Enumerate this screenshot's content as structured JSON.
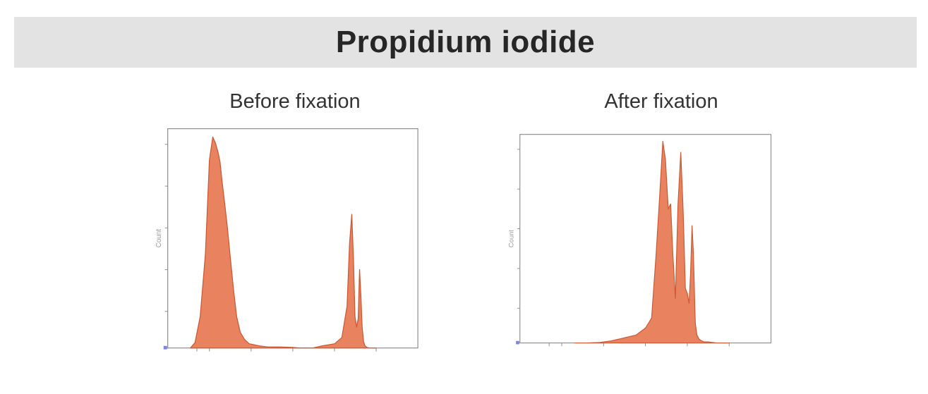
{
  "header": {
    "title": "Propidium iodide"
  },
  "colors": {
    "fill": "#e8825f",
    "stroke": "#cc5a36",
    "axis": "#8c8c8c",
    "banner": "#e3e3e3"
  },
  "chart_data": [
    {
      "type": "area",
      "title": "Before fixation",
      "ylabel": "Count",
      "x_scale": "log",
      "xlim": [
        0.1,
        100000
      ],
      "ylim": [
        0,
        210
      ],
      "x_ticks": [
        0.5,
        1,
        10,
        100,
        1000,
        10000
      ],
      "y_ticks": [
        0,
        35,
        75,
        115,
        155,
        195
      ],
      "series": [
        {
          "x": [
            0.35,
            0.45,
            0.6,
            0.8,
            1.0,
            1.2,
            1.4,
            1.6,
            1.8,
            2.0,
            2.3,
            2.7,
            3.2,
            3.8,
            4.5,
            5.5,
            7,
            9,
            12,
            16,
            25,
            50,
            100,
            150,
            200,
            300,
            500,
            1000,
            1500,
            2000,
            2300,
            2600,
            2850,
            3100,
            3400,
            3700,
            4000,
            4300,
            4600,
            5000,
            5400,
            6000,
            7000,
            10000
          ],
          "y": [
            0,
            5,
            30,
            90,
            180,
            202,
            196,
            188,
            178,
            160,
            140,
            115,
            85,
            55,
            30,
            15,
            8,
            4,
            3,
            2,
            1,
            1,
            0.5,
            0,
            0,
            0,
            2,
            4,
            10,
            40,
            100,
            128,
            85,
            30,
            20,
            28,
            75,
            50,
            20,
            6,
            2,
            0.5,
            0,
            0
          ]
        }
      ]
    },
    {
      "type": "area",
      "title": "After fixation",
      "ylabel": "Count",
      "x_scale": "log",
      "xlim": [
        0.1,
        100000
      ],
      "ylim": [
        0,
        210
      ],
      "x_ticks": [
        0.5,
        1,
        10,
        100,
        1000,
        10000
      ],
      "y_ticks": [
        0,
        35,
        75,
        115,
        155,
        195
      ],
      "series": [
        {
          "x": [
            2,
            4,
            8,
            15,
            30,
            60,
            100,
            140,
            180,
            220,
            260,
            300,
            350,
            400,
            450,
            520,
            600,
            700,
            800,
            900,
            1000,
            1100,
            1200,
            1300,
            1400,
            1550,
            1700,
            1900,
            2200,
            2600,
            3200,
            4000,
            5000,
            10000
          ],
          "y": [
            0,
            0,
            0.5,
            2,
            5,
            8,
            15,
            25,
            90,
            150,
            203,
            185,
            135,
            140,
            90,
            45,
            140,
            192,
            130,
            55,
            50,
            40,
            70,
            118,
            90,
            20,
            8,
            4,
            2,
            1,
            1,
            0.5,
            0,
            0
          ]
        }
      ]
    }
  ]
}
